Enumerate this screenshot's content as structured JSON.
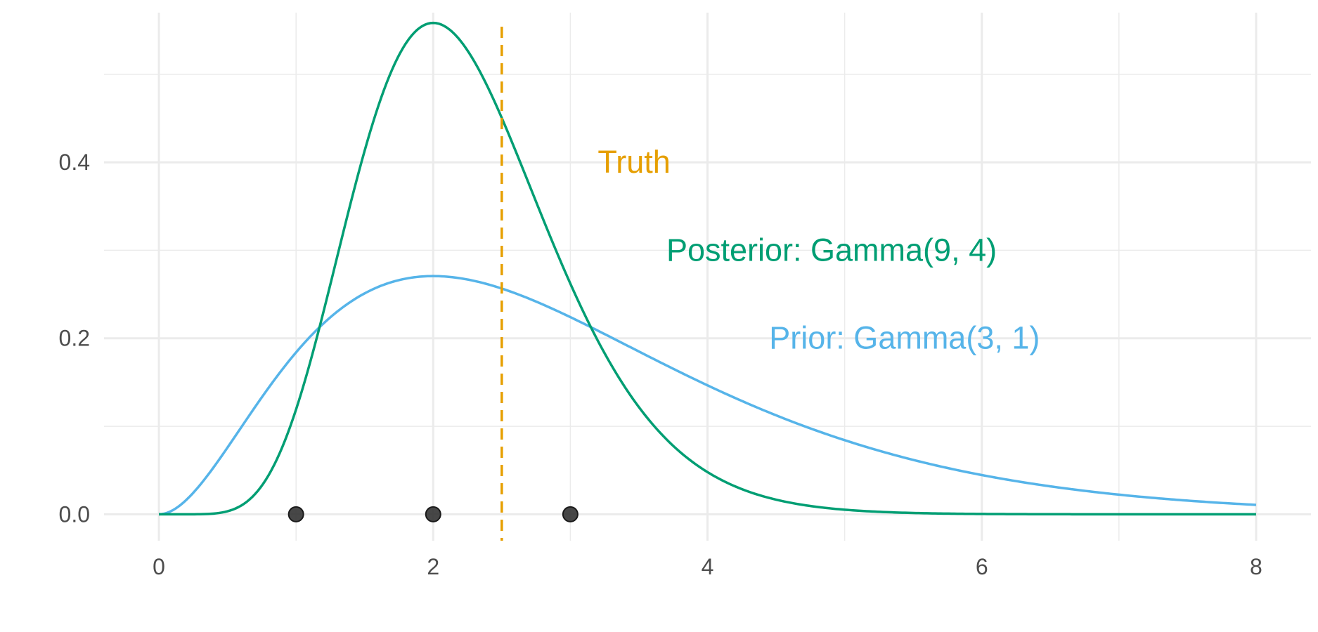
{
  "chart_data": {
    "type": "line",
    "title": "",
    "xlabel": "",
    "ylabel": "",
    "xlim": [
      -0.4,
      8.4
    ],
    "ylim": [
      -0.03,
      0.57
    ],
    "grid": true,
    "x_ticks": [
      0,
      2,
      4,
      6,
      8
    ],
    "x_tick_labels": [
      "0",
      "2",
      "4",
      "6",
      "8"
    ],
    "y_ticks": [
      0.0,
      0.2,
      0.4
    ],
    "y_tick_labels": [
      "0.0",
      "0.2",
      "0.4"
    ],
    "series": [
      {
        "name": "Prior: Gamma(3, 1)",
        "color": "#56B4E9",
        "distribution": "gamma",
        "shape": 3,
        "rate": 1,
        "x": [
          0,
          0.5,
          1,
          1.5,
          2,
          2.5,
          3,
          3.5,
          4,
          4.5,
          5,
          5.5,
          6,
          6.5,
          7,
          7.5,
          8
        ],
        "y": [
          0.0,
          0.076,
          0.184,
          0.251,
          0.271,
          0.257,
          0.224,
          0.185,
          0.147,
          0.112,
          0.084,
          0.062,
          0.045,
          0.032,
          0.022,
          0.016,
          0.011
        ]
      },
      {
        "name": "Posterior: Gamma(9, 4)",
        "color": "#009E73",
        "distribution": "gamma",
        "shape": 9,
        "rate": 4,
        "x": [
          0,
          0.5,
          1,
          1.5,
          2,
          2.5,
          3,
          3.5,
          4,
          4.5,
          5,
          5.5,
          6,
          6.5,
          7,
          7.5,
          8
        ],
        "y": [
          0.0,
          0.0026,
          0.119,
          0.418,
          0.558,
          0.429,
          0.222,
          0.087,
          0.028,
          0.008,
          0.002,
          0.0004,
          0.0001,
          0.0,
          0.0,
          0.0,
          0.0
        ]
      }
    ],
    "truth": {
      "x": 2.5,
      "label": "Truth",
      "color": "#E69F00",
      "line_style": "dashed"
    },
    "observations": {
      "x": [
        1,
        2,
        3
      ],
      "y": [
        0,
        0,
        0
      ],
      "color": "#333333"
    },
    "annotations": [
      {
        "text": "Truth",
        "x": 3.2,
        "y": 0.4,
        "color": "#E69F00"
      },
      {
        "text": "Posterior: Gamma(9, 4)",
        "x": 3.7,
        "y": 0.3,
        "color": "#009E73"
      },
      {
        "text": "Prior: Gamma(3, 1)",
        "x": 4.45,
        "y": 0.2,
        "color": "#56B4E9"
      }
    ],
    "grid_color": "#ebebeb"
  }
}
